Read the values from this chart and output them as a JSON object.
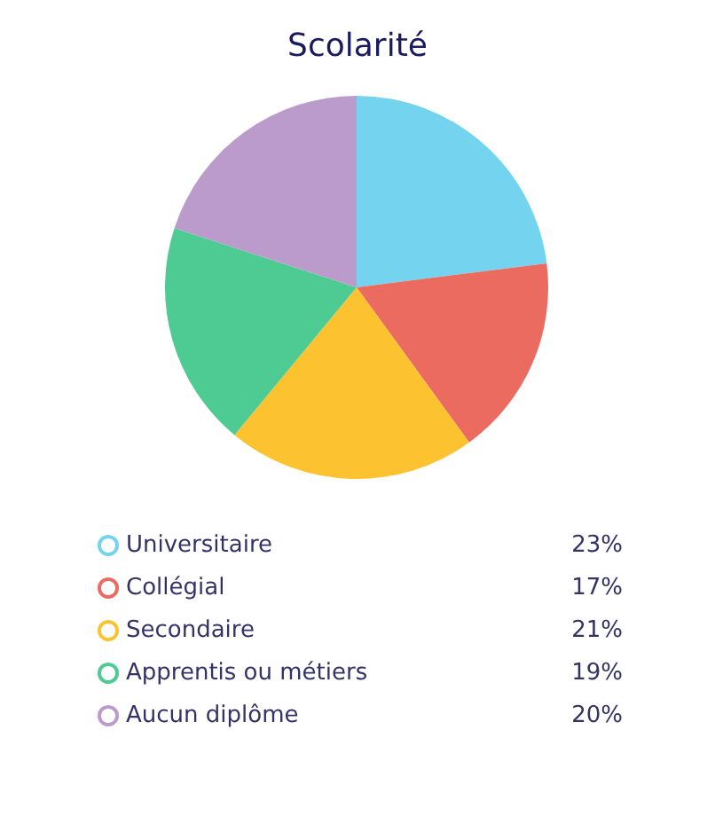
{
  "chart_data": {
    "type": "pie",
    "title": "Scolarité",
    "categories": [
      "Universitaire",
      "Collégial",
      "Secondaire",
      "Apprentis ou métiers",
      "Aucun diplôme"
    ],
    "values": [
      23,
      17,
      21,
      19,
      20
    ],
    "value_labels": [
      "23%",
      "17%",
      "21%",
      "19%",
      "20%"
    ],
    "colors": [
      "#74d3ee",
      "#ec6b60",
      "#fcc22f",
      "#4ecb92",
      "#bb9bcb"
    ],
    "legend": "bottom"
  }
}
